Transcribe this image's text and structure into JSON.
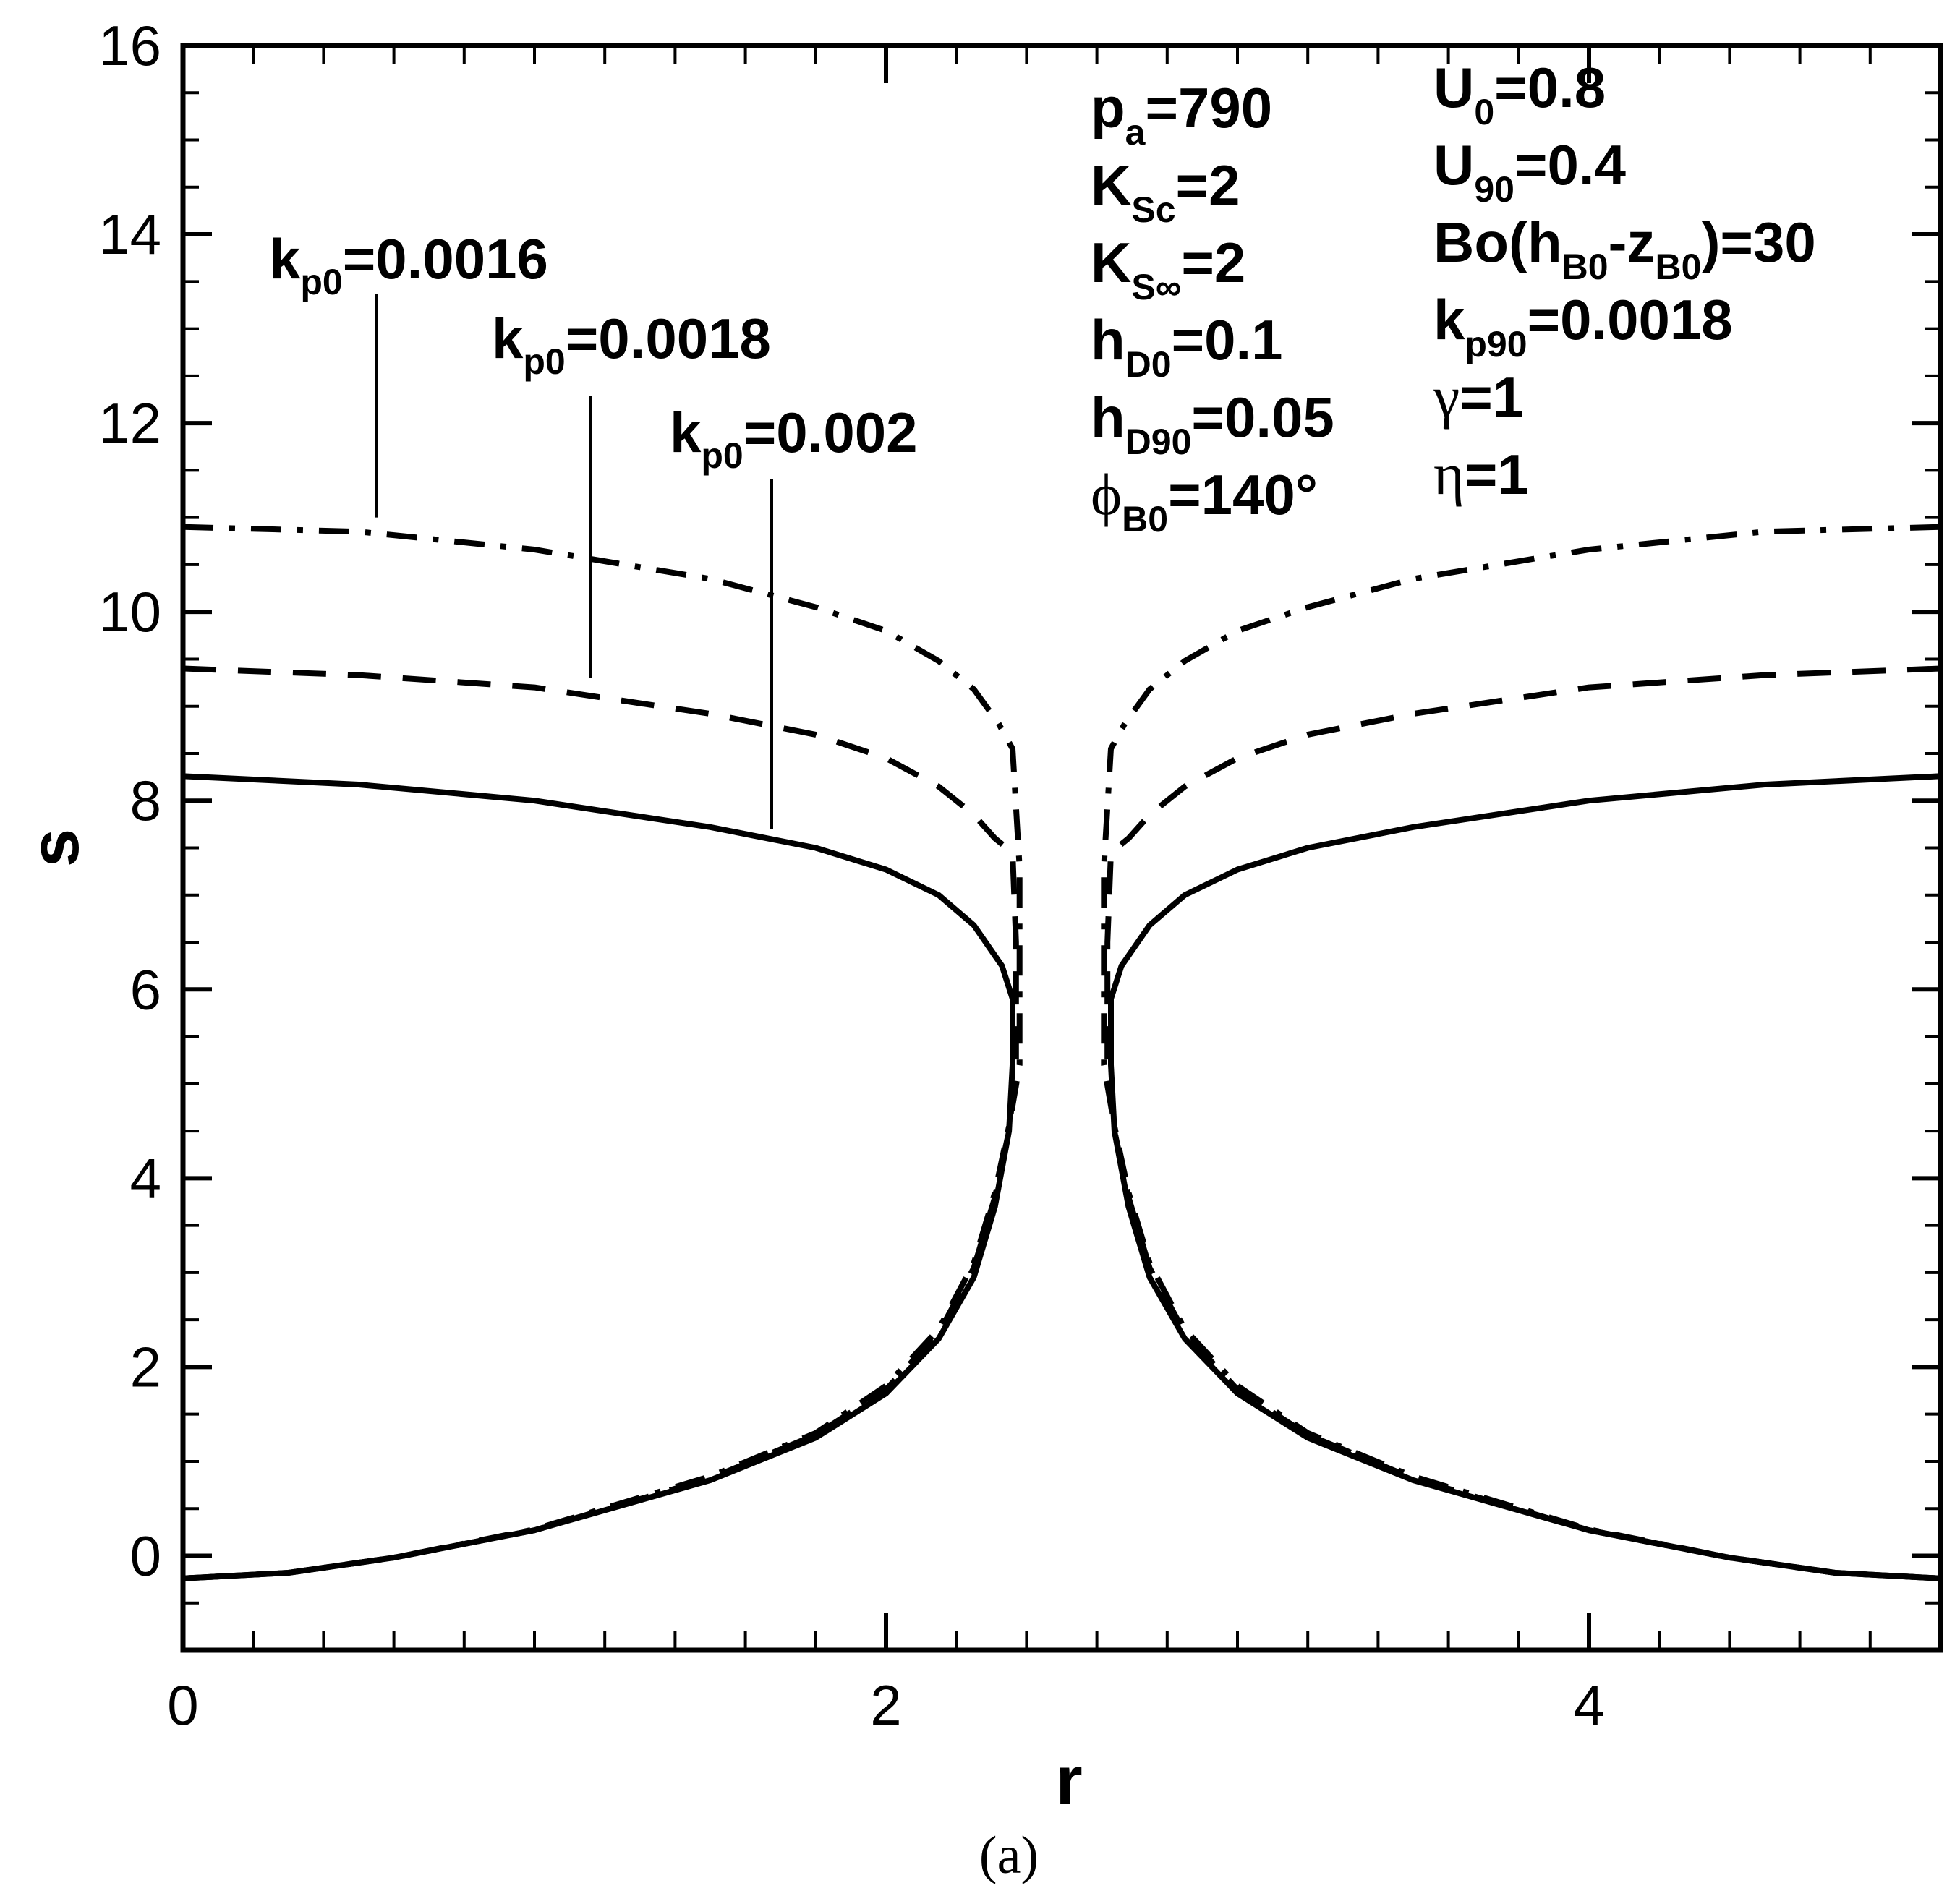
{
  "chart_data": {
    "type": "line",
    "title": "",
    "caption": "(a)",
    "xlabel": "r",
    "ylabel": "s",
    "xlim": [
      0,
      5
    ],
    "ylim": [
      -1,
      16
    ],
    "x_major_ticks": [
      0,
      2,
      4
    ],
    "x_tick_labels": [
      "0",
      "2",
      "4"
    ],
    "y_major_ticks": [
      0,
      2,
      4,
      6,
      8,
      10,
      12,
      14,
      16
    ],
    "y_tick_labels": [
      "0",
      "2",
      "4",
      "6",
      "8",
      "10",
      "12",
      "14",
      "16"
    ],
    "grid": false,
    "legend": "none",
    "series": [
      {
        "name": "k_p0=0.002",
        "style": "solid",
        "upper_left": [
          [
            0,
            8.26
          ],
          [
            0.5,
            8.17
          ],
          [
            1.0,
            8.0
          ],
          [
            1.5,
            7.72
          ],
          [
            1.8,
            7.5
          ],
          [
            2.0,
            7.27
          ],
          [
            2.15,
            7.0
          ],
          [
            2.25,
            6.68
          ],
          [
            2.33,
            6.25
          ],
          [
            2.36,
            5.9
          ]
        ],
        "lower_left": [
          [
            0,
            -0.24
          ],
          [
            0.3,
            -0.18
          ],
          [
            0.6,
            -0.02
          ],
          [
            1.0,
            0.27
          ],
          [
            1.5,
            0.8
          ],
          [
            1.8,
            1.25
          ],
          [
            2.0,
            1.72
          ],
          [
            2.15,
            2.3
          ],
          [
            2.25,
            2.95
          ],
          [
            2.31,
            3.7
          ],
          [
            2.35,
            4.5
          ],
          [
            2.36,
            5.2
          ],
          [
            2.36,
            5.9
          ]
        ],
        "mirror_about_r": 2.5
      },
      {
        "name": "k_p0=0.0018",
        "style": "dashed",
        "upper_left": [
          [
            0,
            9.4
          ],
          [
            0.5,
            9.33
          ],
          [
            1.0,
            9.2
          ],
          [
            1.5,
            8.92
          ],
          [
            1.8,
            8.7
          ],
          [
            2.0,
            8.45
          ],
          [
            2.15,
            8.15
          ],
          [
            2.25,
            7.85
          ],
          [
            2.31,
            7.6
          ],
          [
            2.36,
            7.45
          ],
          [
            2.37,
            6.5
          ],
          [
            2.37,
            5.9
          ]
        ],
        "lower_left": [
          [
            0,
            -0.24
          ],
          [
            0.3,
            -0.18
          ],
          [
            0.6,
            -0.02
          ],
          [
            1.0,
            0.27
          ],
          [
            1.5,
            0.82
          ],
          [
            1.8,
            1.28
          ],
          [
            2.0,
            1.76
          ],
          [
            2.15,
            2.36
          ],
          [
            2.25,
            3.05
          ],
          [
            2.31,
            3.8
          ],
          [
            2.35,
            4.5
          ],
          [
            2.37,
            5.2
          ],
          [
            2.37,
            5.9
          ]
        ],
        "mirror_about_r": 2.5
      },
      {
        "name": "k_p0=0.0016",
        "style": "dashdot",
        "upper_left": [
          [
            0,
            10.9
          ],
          [
            0.5,
            10.85
          ],
          [
            1.0,
            10.66
          ],
          [
            1.5,
            10.35
          ],
          [
            1.8,
            10.05
          ],
          [
            2.0,
            9.8
          ],
          [
            2.15,
            9.48
          ],
          [
            2.25,
            9.18
          ],
          [
            2.32,
            8.82
          ],
          [
            2.36,
            8.55
          ],
          [
            2.38,
            7.3
          ],
          [
            2.38,
            5.9
          ]
        ],
        "lower_left": [
          [
            0,
            -0.24
          ],
          [
            0.3,
            -0.18
          ],
          [
            0.6,
            -0.02
          ],
          [
            1.0,
            0.28
          ],
          [
            1.5,
            0.84
          ],
          [
            1.8,
            1.3
          ],
          [
            2.0,
            1.8
          ],
          [
            2.15,
            2.4
          ],
          [
            2.25,
            3.1
          ],
          [
            2.31,
            3.85
          ],
          [
            2.35,
            4.55
          ],
          [
            2.38,
            5.2
          ],
          [
            2.38,
            5.9
          ]
        ],
        "mirror_about_r": 2.5
      }
    ],
    "curve_labels": [
      {
        "text": "k",
        "sub": "p0",
        "value": "=0.0016",
        "points_to": [
          0.55,
          11.0
        ]
      },
      {
        "text": "k",
        "sub": "p0",
        "value": "=0.0018",
        "points_to": [
          1.16,
          9.3
        ]
      },
      {
        "text": "k",
        "sub": "p0",
        "value": "=0.002",
        "points_to": [
          1.67,
          7.7
        ]
      }
    ],
    "parameters_col1": [
      {
        "main": "p",
        "sub": "a",
        "rest": "=790"
      },
      {
        "main": "K",
        "sub": "Sc",
        "rest": "=2"
      },
      {
        "main": "K",
        "sub": "S∞",
        "rest": "=2"
      },
      {
        "main": "h",
        "sub": "D0",
        "rest": "=0.1"
      },
      {
        "main": "h",
        "sub": "D90",
        "rest": "=0.05"
      },
      {
        "main": "ϕ",
        "sub": "B0",
        "rest": "=140°"
      }
    ],
    "parameters_col2": [
      {
        "main": "U",
        "sub": "0",
        "rest": "=0.8"
      },
      {
        "main": "U",
        "sub": "90",
        "rest": "=0.4"
      },
      {
        "main": "Bo(h",
        "sub": "B0",
        "mid": "-z",
        "sub2": "B0",
        "rest": ")=30"
      },
      {
        "main": "k",
        "sub": "p90",
        "rest": "=0.0018"
      },
      {
        "main": "γ",
        "sub": "",
        "rest": "=1"
      },
      {
        "main": "η",
        "sub": "",
        "rest": "=1"
      }
    ]
  }
}
